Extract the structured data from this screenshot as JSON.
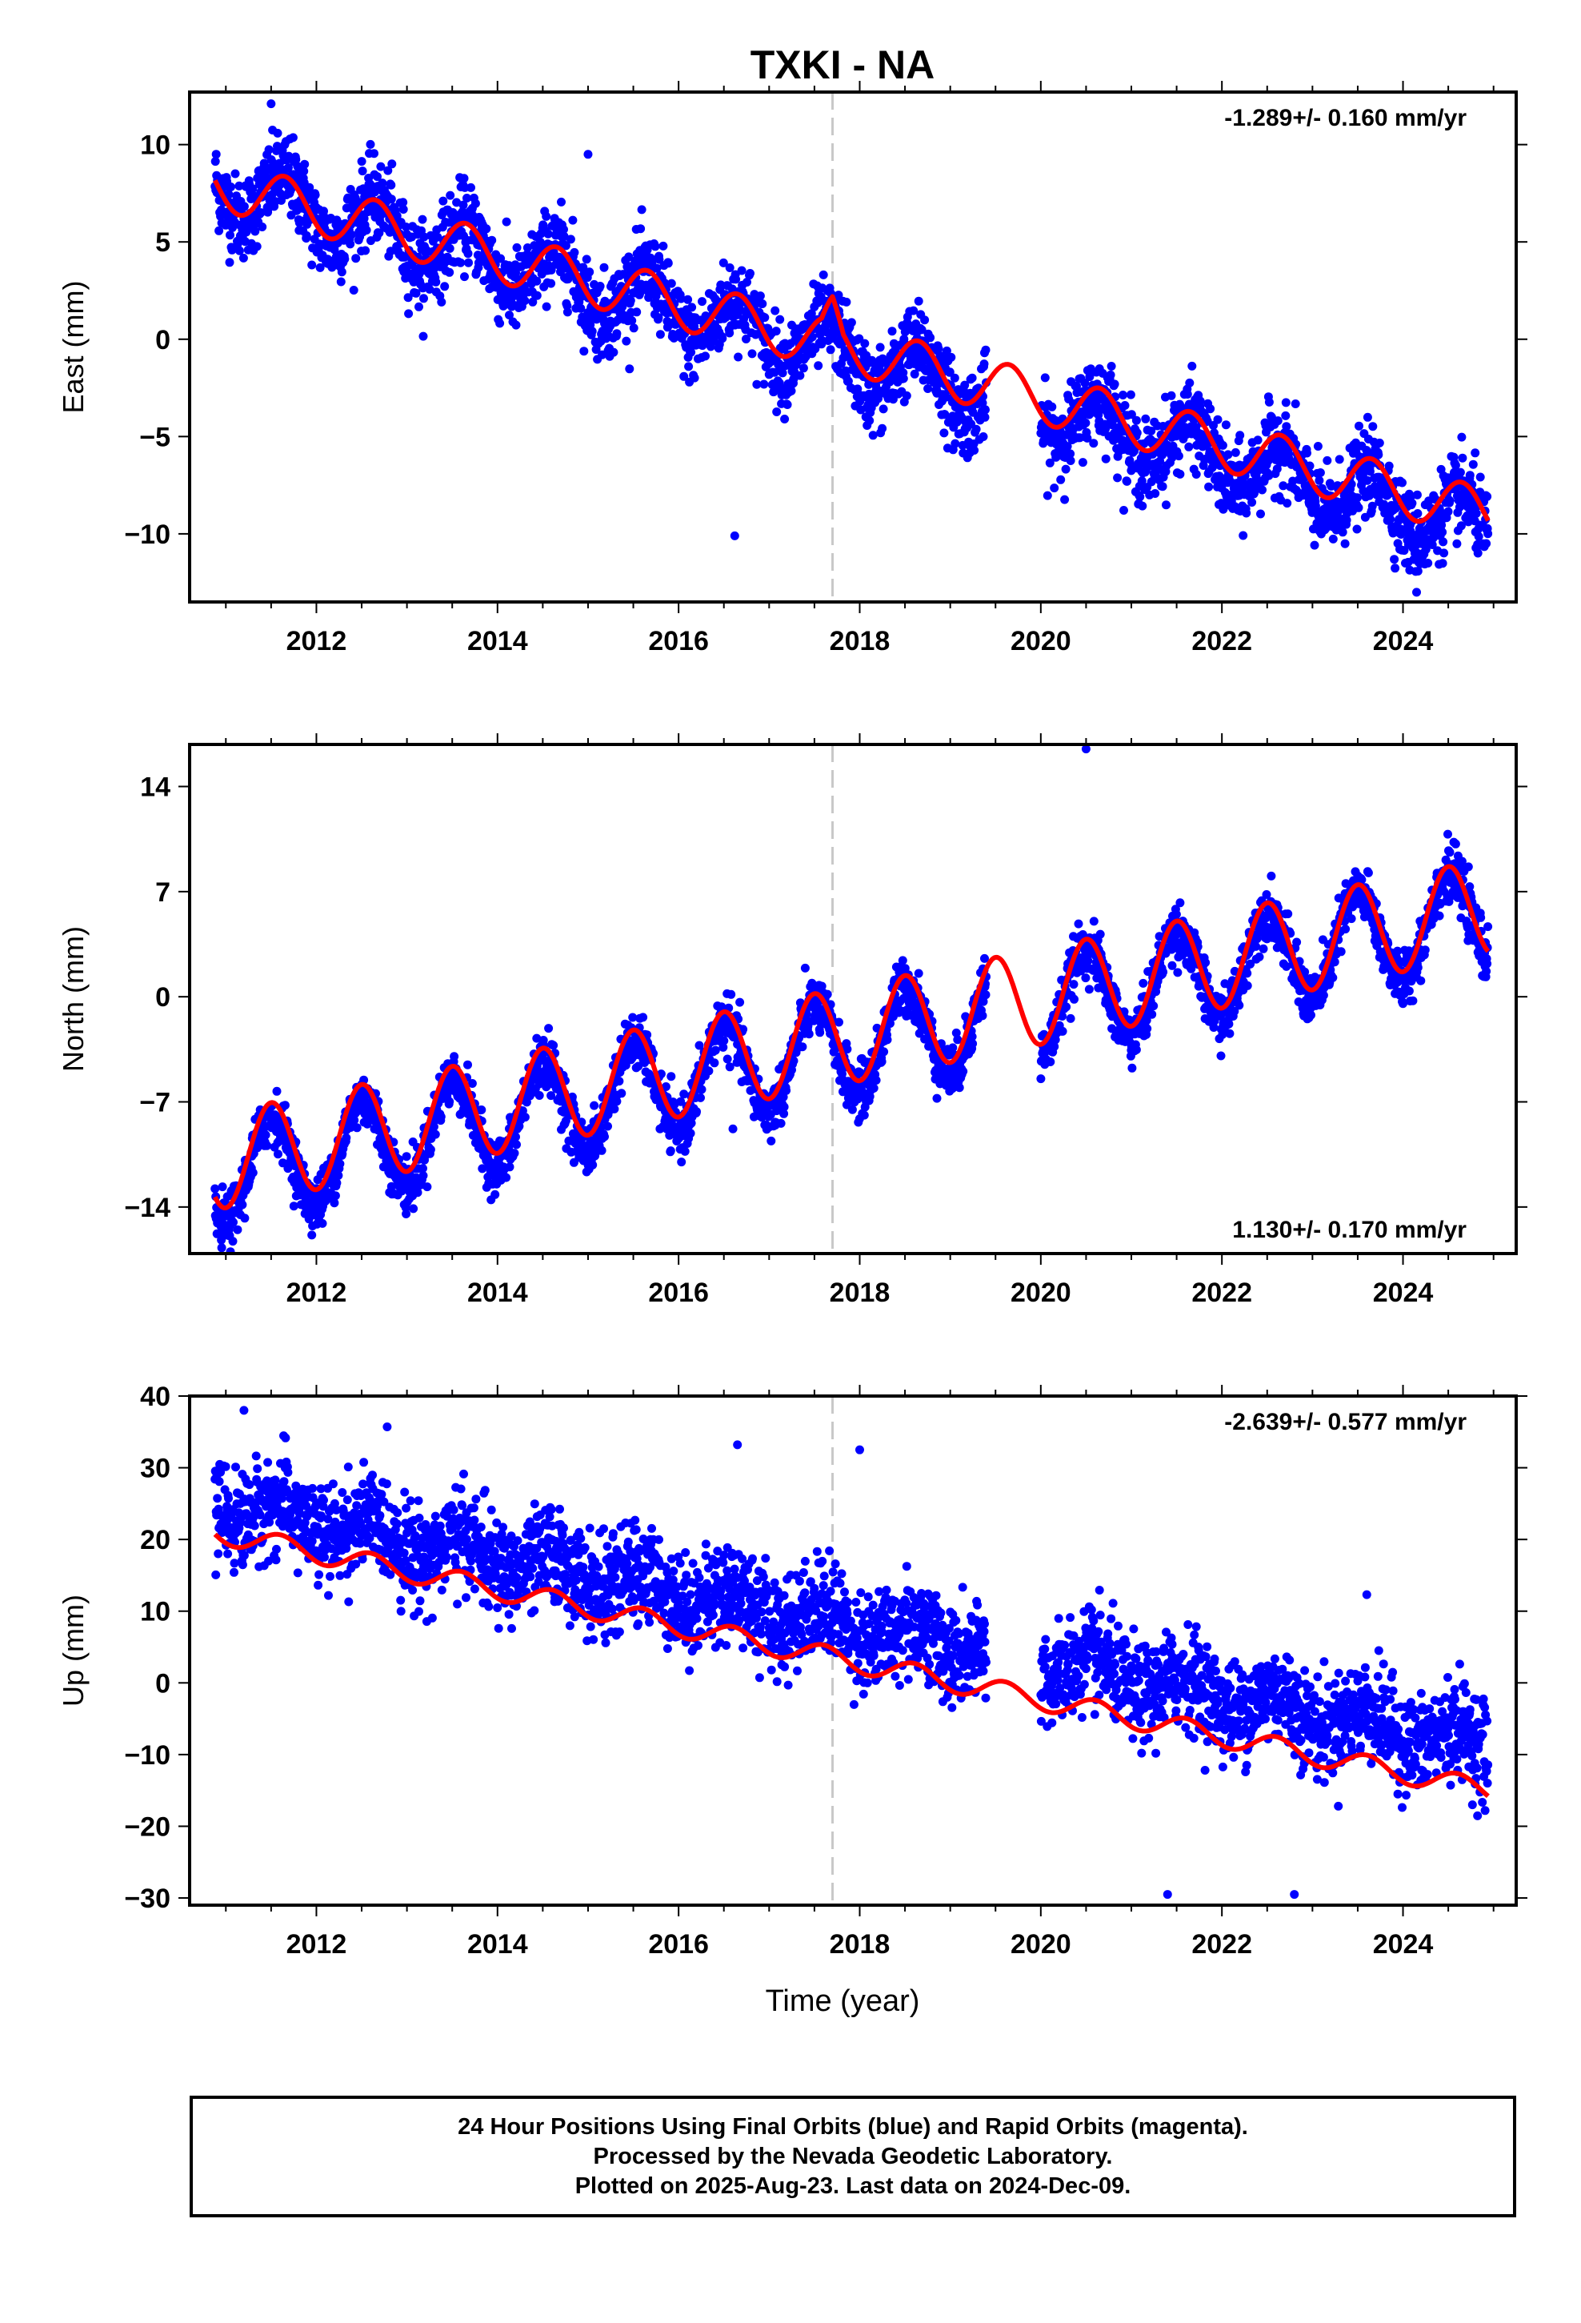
{
  "title": "TXKI - NA",
  "xlabel": "Time (year)",
  "footer": {
    "line1": "24 Hour Positions Using Final Orbits (blue) and Rapid Orbits (magenta).",
    "line2": "Processed by the Nevada Geodetic Laboratory.",
    "line3": "Plotted on 2025-Aug-23. Last data on 2024-Dec-09."
  },
  "colors": {
    "points": "#0000ff",
    "fit": "#ff0000",
    "marker_line": "#c8c8c8",
    "frame": "#000000"
  },
  "chart_data": [
    {
      "type": "scatter",
      "ylabel": "East (mm)",
      "rate_label": "-1.289+/- 0.160 mm/yr",
      "rate_position": "top-right",
      "xlim": [
        2010.6,
        2025.25
      ],
      "ylim": [
        -13.5,
        12.7
      ],
      "xticks": [
        2012,
        2014,
        2016,
        2018,
        2020,
        2022,
        2024
      ],
      "yticks": [
        10,
        5,
        0,
        -5,
        -10
      ],
      "ytick_labels": [
        "10",
        "5",
        "0",
        "−5",
        "−10"
      ],
      "equipment_change": 2017.7,
      "data_gap": [
        2019.4,
        2020.0
      ],
      "series": [
        {
          "role": "positions",
          "x_start": 2010.88,
          "x_end": 2024.94,
          "trend_start": 8.0,
          "trend_end": -9.8,
          "annual_amplitude": 1.4,
          "annual_peak": 0.65,
          "scatter": 1.4,
          "outliers": [
            [
              2016.62,
              -10.1
            ],
            [
              2011.5,
              12.1
            ],
            [
              2015.0,
              9.5
            ],
            [
              2024.15,
              -13.0
            ]
          ]
        },
        {
          "role": "fit",
          "x_start": 2010.88,
          "x_end": 2024.94,
          "trend_start": 8.0,
          "trend_end": -9.0,
          "annual_amplitude": 1.3,
          "annual_peak": 0.65,
          "offset_at_change": 1.2
        }
      ]
    },
    {
      "type": "scatter",
      "ylabel": "North (mm)",
      "rate_label": "1.130+/- 0.170 mm/yr",
      "rate_position": "bottom-right",
      "xlim": [
        2010.6,
        2025.25
      ],
      "ylim": [
        -17.1,
        16.8
      ],
      "xticks": [
        2012,
        2014,
        2016,
        2018,
        2020,
        2022,
        2024
      ],
      "yticks": [
        14,
        7,
        0,
        -7,
        -14
      ],
      "ytick_labels": [
        "14",
        "7",
        "0",
        "−7",
        "−14"
      ],
      "equipment_change": 2017.7,
      "data_gap": [
        2019.4,
        2020.0
      ],
      "series": [
        {
          "role": "positions",
          "x_start": 2010.88,
          "x_end": 2024.94,
          "trend_start": -12.0,
          "trend_end": 5.5,
          "annual_amplitude": 3.2,
          "annual_peak": 0.5,
          "scatter": 1.2,
          "outliers": [
            [
              2020.5,
              16.5
            ],
            [
              2016.6,
              -8.8
            ],
            [
              2010.95,
              -16.2
            ]
          ]
        },
        {
          "role": "fit",
          "x_start": 2010.88,
          "x_end": 2024.94,
          "trend_start": -11.0,
          "trend_end": 6.0,
          "annual_amplitude": 3.2,
          "annual_peak": 0.5,
          "offset_at_change": 0
        }
      ]
    },
    {
      "type": "scatter",
      "ylabel": "Up (mm)",
      "rate_label": "-2.639+/- 0.577 mm/yr",
      "rate_position": "top-right",
      "xlim": [
        2010.6,
        2025.25
      ],
      "ylim": [
        -31,
        40
      ],
      "xticks": [
        2012,
        2014,
        2016,
        2018,
        2020,
        2022,
        2024
      ],
      "yticks": [
        40,
        30,
        20,
        10,
        0,
        -10,
        -20,
        -30
      ],
      "ytick_labels": [
        "40",
        "30",
        "20",
        "10",
        "0",
        "−10",
        "−20",
        "−30"
      ],
      "equipment_change": 2017.7,
      "data_gap": [
        2019.4,
        2020.0
      ],
      "series": [
        {
          "role": "positions",
          "x_start": 2010.88,
          "x_end": 2024.94,
          "trend_start": 25.0,
          "trend_end": -9.0,
          "annual_amplitude": 2.0,
          "annual_peak": 0.6,
          "scatter": 4.5,
          "outliers": [
            [
              2016.65,
              33.2
            ],
            [
              2018.0,
              32.5
            ],
            [
              2021.4,
              -29.5
            ],
            [
              2022.8,
              -29.5
            ],
            [
              2023.6,
              12.3
            ],
            [
              2011.2,
              38.0
            ]
          ]
        },
        {
          "role": "fit",
          "x_start": 2010.88,
          "x_end": 2024.94,
          "trend_start": 21.0,
          "trend_end": -15.0,
          "annual_amplitude": 1.5,
          "annual_peak": 0.6,
          "offset_at_change": 0
        }
      ]
    }
  ]
}
